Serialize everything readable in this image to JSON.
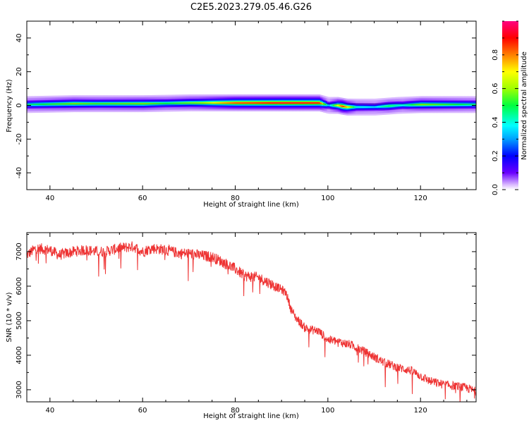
{
  "title": "C2E5.2023.279.05.46.G26",
  "colorbar": {
    "label": "Normalized spectral amplitude",
    "range": [
      0,
      1
    ],
    "ticks": [
      "0.0",
      "0.2",
      "0.4",
      "0.6",
      "0.8"
    ],
    "tick_values": [
      0.0,
      0.2,
      0.4,
      0.6,
      0.8
    ]
  },
  "chart_data": [
    {
      "type": "heatmap",
      "xlabel": "Height of straight line (km)",
      "ylabel": "Frequency (Hz)",
      "xlim": [
        35,
        132
      ],
      "ylim": [
        -50,
        50
      ],
      "xticks": [
        40,
        60,
        80,
        100,
        120
      ],
      "yticks": [
        -40,
        -20,
        0,
        20,
        40
      ],
      "grid": false,
      "band_center_hz": [
        [
          35,
          0.5
        ],
        [
          45,
          1.0
        ],
        [
          60,
          1.0
        ],
        [
          70,
          1.5
        ],
        [
          80,
          1.5
        ],
        [
          90,
          1.5
        ],
        [
          98,
          1.5
        ],
        [
          100,
          0.0
        ],
        [
          102,
          0.0
        ],
        [
          104,
          -1.0
        ],
        [
          110,
          -1.0
        ],
        [
          115,
          0.0
        ],
        [
          120,
          0.5
        ],
        [
          132,
          0.5
        ]
      ],
      "peak_amplitude": [
        [
          35,
          0.45
        ],
        [
          45,
          0.6
        ],
        [
          50,
          0.55
        ],
        [
          60,
          0.6
        ],
        [
          65,
          0.5
        ],
        [
          72,
          0.6
        ],
        [
          80,
          0.85
        ],
        [
          90,
          0.92
        ],
        [
          98,
          0.9
        ],
        [
          100,
          0.3
        ],
        [
          103,
          0.9
        ],
        [
          106,
          0.4
        ],
        [
          110,
          0.35
        ],
        [
          113,
          0.5
        ],
        [
          116,
          0.4
        ],
        [
          120,
          0.6
        ],
        [
          132,
          0.45
        ]
      ]
    },
    {
      "type": "line",
      "xlabel": "Height of straight line (km)",
      "ylabel": "SNR (10 * v/v)",
      "xlim": [
        35,
        132
      ],
      "ylim": [
        2650,
        7550
      ],
      "xticks": [
        40,
        60,
        80,
        100,
        120
      ],
      "yticks": [
        3000,
        4000,
        5000,
        6000,
        7000
      ],
      "grid": false,
      "color": "#ee3333",
      "series": [
        {
          "name": "",
          "x": [
            35,
            37,
            40,
            42,
            45,
            48,
            50,
            52,
            55,
            58,
            60,
            62,
            65,
            68,
            70,
            72,
            75,
            78,
            80,
            82,
            85,
            88,
            90,
            91,
            92,
            93,
            94,
            95,
            96,
            98,
            100,
            102,
            105,
            108,
            110,
            112,
            115,
            118,
            120,
            122,
            125,
            128,
            130,
            132
          ],
          "y": [
            6900,
            7100,
            7050,
            6900,
            7000,
            7050,
            7000,
            7000,
            7100,
            7150,
            7000,
            7100,
            7050,
            6950,
            6950,
            6900,
            6850,
            6650,
            6500,
            6300,
            6250,
            6050,
            5900,
            5800,
            5350,
            5100,
            4950,
            4800,
            4750,
            4700,
            4450,
            4400,
            4300,
            4100,
            3950,
            3800,
            3650,
            3550,
            3400,
            3250,
            3150,
            3100,
            3050,
            2950
          ]
        }
      ]
    }
  ]
}
